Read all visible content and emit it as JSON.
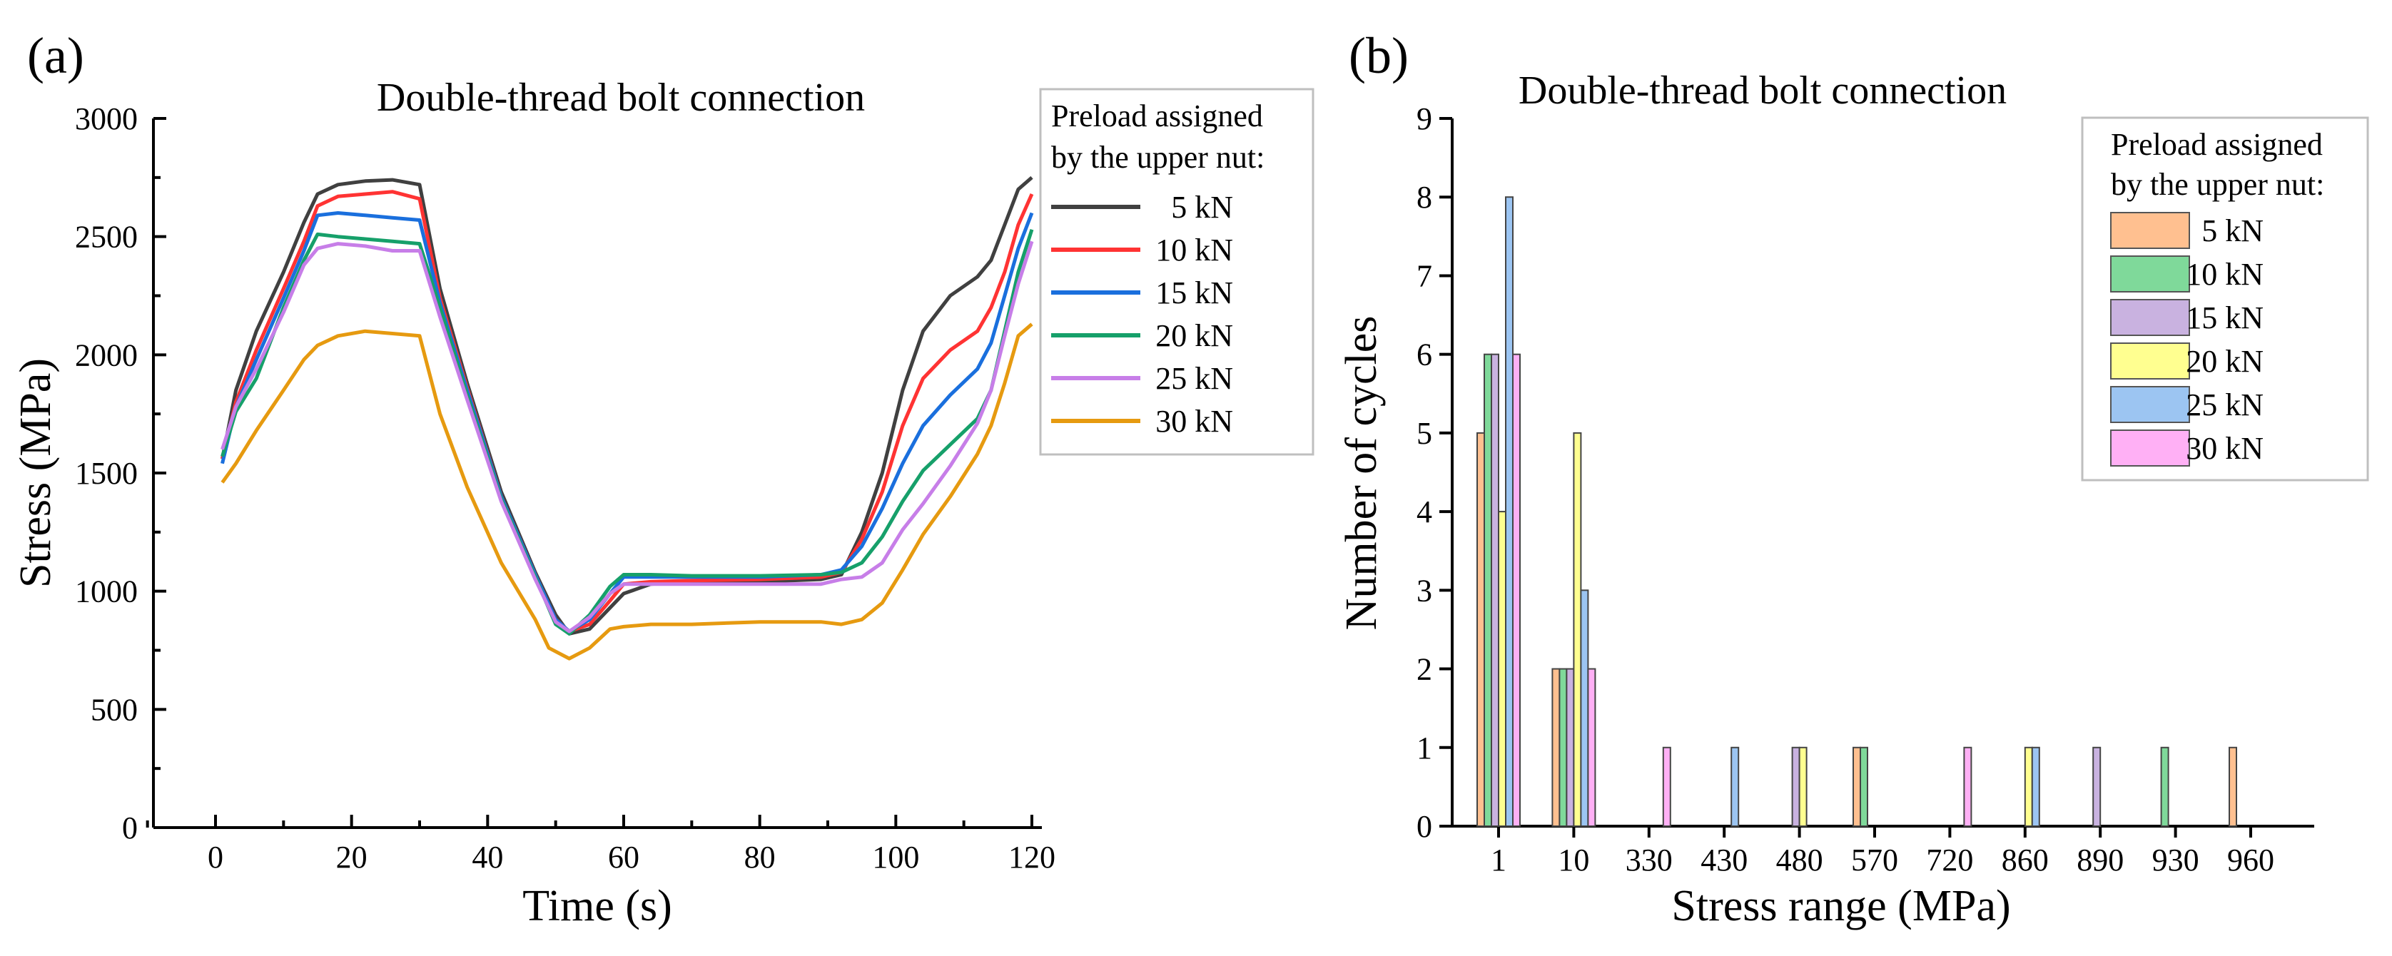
{
  "chart_data": [
    {
      "panel_label": "(a)",
      "type": "line",
      "title": "Double-thread bolt connection",
      "xlabel": "Time (s)",
      "ylabel": "Stress (MPa)",
      "xlim": [
        -10,
        121
      ],
      "ylim": [
        0,
        3000
      ],
      "xticks": [
        0,
        20,
        40,
        60,
        80,
        100,
        120
      ],
      "yticks": [
        0,
        500,
        1000,
        1500,
        2000,
        2500,
        3000
      ],
      "legend_title": [
        "Preload assigned",
        "by the upper nut:"
      ],
      "legend_position": "top-right",
      "series": [
        {
          "name": "5 kN",
          "color": "#404040",
          "points": [
            [
              1,
              1560
            ],
            [
              3,
              1850
            ],
            [
              6,
              2100
            ],
            [
              10,
              2350
            ],
            [
              13,
              2560
            ],
            [
              15,
              2680
            ],
            [
              18,
              2720
            ],
            [
              22,
              2735
            ],
            [
              26,
              2740
            ],
            [
              30,
              2720
            ],
            [
              33,
              2280
            ],
            [
              37,
              1880
            ],
            [
              42,
              1420
            ],
            [
              47,
              1080
            ],
            [
              50,
              900
            ],
            [
              52,
              820
            ],
            [
              55,
              840
            ],
            [
              58,
              930
            ],
            [
              60,
              990
            ],
            [
              64,
              1030
            ],
            [
              70,
              1040
            ],
            [
              80,
              1040
            ],
            [
              89,
              1050
            ],
            [
              92,
              1070
            ],
            [
              95,
              1250
            ],
            [
              98,
              1500
            ],
            [
              101,
              1850
            ],
            [
              104,
              2100
            ],
            [
              108,
              2250
            ],
            [
              112,
              2330
            ],
            [
              114,
              2400
            ],
            [
              116,
              2550
            ],
            [
              118,
              2700
            ],
            [
              120,
              2750
            ]
          ]
        },
        {
          "name": "10 kN",
          "color": "#ff3333",
          "points": [
            [
              1,
              1560
            ],
            [
              3,
              1800
            ],
            [
              6,
              2020
            ],
            [
              10,
              2280
            ],
            [
              13,
              2480
            ],
            [
              15,
              2630
            ],
            [
              18,
              2670
            ],
            [
              22,
              2680
            ],
            [
              26,
              2690
            ],
            [
              30,
              2660
            ],
            [
              33,
              2240
            ],
            [
              37,
              1860
            ],
            [
              42,
              1400
            ],
            [
              47,
              1070
            ],
            [
              50,
              880
            ],
            [
              52,
              830
            ],
            [
              55,
              860
            ],
            [
              58,
              960
            ],
            [
              60,
              1030
            ],
            [
              64,
              1040
            ],
            [
              70,
              1045
            ],
            [
              80,
              1050
            ],
            [
              89,
              1060
            ],
            [
              92,
              1080
            ],
            [
              95,
              1220
            ],
            [
              98,
              1420
            ],
            [
              101,
              1700
            ],
            [
              104,
              1900
            ],
            [
              108,
              2020
            ],
            [
              112,
              2100
            ],
            [
              114,
              2200
            ],
            [
              116,
              2350
            ],
            [
              118,
              2550
            ],
            [
              120,
              2680
            ]
          ]
        },
        {
          "name": "15 kN",
          "color": "#1a6fdd",
          "points": [
            [
              1,
              1540
            ],
            [
              3,
              1780
            ],
            [
              6,
              1980
            ],
            [
              10,
              2240
            ],
            [
              13,
              2440
            ],
            [
              15,
              2590
            ],
            [
              18,
              2600
            ],
            [
              22,
              2590
            ],
            [
              26,
              2580
            ],
            [
              30,
              2570
            ],
            [
              33,
              2220
            ],
            [
              37,
              1850
            ],
            [
              42,
              1400
            ],
            [
              47,
              1070
            ],
            [
              50,
              880
            ],
            [
              52,
              830
            ],
            [
              55,
              880
            ],
            [
              58,
              990
            ],
            [
              60,
              1060
            ],
            [
              64,
              1060
            ],
            [
              70,
              1060
            ],
            [
              80,
              1060
            ],
            [
              89,
              1070
            ],
            [
              92,
              1090
            ],
            [
              95,
              1190
            ],
            [
              98,
              1350
            ],
            [
              101,
              1540
            ],
            [
              104,
              1700
            ],
            [
              108,
              1830
            ],
            [
              112,
              1940
            ],
            [
              114,
              2050
            ],
            [
              116,
              2250
            ],
            [
              118,
              2450
            ],
            [
              120,
              2600
            ]
          ]
        },
        {
          "name": "20 kN",
          "color": "#16a06a",
          "points": [
            [
              1,
              1570
            ],
            [
              3,
              1760
            ],
            [
              6,
              1900
            ],
            [
              10,
              2200
            ],
            [
              13,
              2400
            ],
            [
              15,
              2510
            ],
            [
              18,
              2500
            ],
            [
              22,
              2490
            ],
            [
              26,
              2480
            ],
            [
              30,
              2470
            ],
            [
              33,
              2200
            ],
            [
              37,
              1830
            ],
            [
              42,
              1390
            ],
            [
              47,
              1060
            ],
            [
              50,
              860
            ],
            [
              52,
              820
            ],
            [
              55,
              900
            ],
            [
              58,
              1020
            ],
            [
              60,
              1070
            ],
            [
              64,
              1070
            ],
            [
              70,
              1065
            ],
            [
              80,
              1065
            ],
            [
              89,
              1070
            ],
            [
              92,
              1080
            ],
            [
              95,
              1120
            ],
            [
              98,
              1230
            ],
            [
              101,
              1380
            ],
            [
              104,
              1510
            ],
            [
              108,
              1620
            ],
            [
              112,
              1730
            ],
            [
              114,
              1850
            ],
            [
              116,
              2100
            ],
            [
              118,
              2350
            ],
            [
              120,
              2530
            ]
          ]
        },
        {
          "name": "25 kN",
          "color": "#c77ee8",
          "points": [
            [
              1,
              1600
            ],
            [
              3,
              1780
            ],
            [
              6,
              1940
            ],
            [
              10,
              2180
            ],
            [
              13,
              2380
            ],
            [
              15,
              2450
            ],
            [
              18,
              2470
            ],
            [
              22,
              2460
            ],
            [
              26,
              2440
            ],
            [
              30,
              2440
            ],
            [
              33,
              2160
            ],
            [
              37,
              1810
            ],
            [
              42,
              1380
            ],
            [
              47,
              1050
            ],
            [
              50,
              870
            ],
            [
              52,
              830
            ],
            [
              55,
              890
            ],
            [
              58,
              990
            ],
            [
              60,
              1030
            ],
            [
              64,
              1030
            ],
            [
              70,
              1030
            ],
            [
              80,
              1030
            ],
            [
              89,
              1030
            ],
            [
              92,
              1050
            ],
            [
              95,
              1060
            ],
            [
              98,
              1120
            ],
            [
              101,
              1260
            ],
            [
              104,
              1370
            ],
            [
              108,
              1530
            ],
            [
              112,
              1710
            ],
            [
              114,
              1850
            ],
            [
              116,
              2080
            ],
            [
              118,
              2300
            ],
            [
              120,
              2480
            ]
          ]
        },
        {
          "name": "30 kN",
          "color": "#e69a10",
          "points": [
            [
              1,
              1460
            ],
            [
              3,
              1540
            ],
            [
              6,
              1680
            ],
            [
              10,
              1850
            ],
            [
              13,
              1980
            ],
            [
              15,
              2040
            ],
            [
              18,
              2080
            ],
            [
              22,
              2100
            ],
            [
              26,
              2090
            ],
            [
              30,
              2080
            ],
            [
              33,
              1750
            ],
            [
              37,
              1440
            ],
            [
              42,
              1120
            ],
            [
              47,
              880
            ],
            [
              49,
              760
            ],
            [
              52,
              715
            ],
            [
              55,
              760
            ],
            [
              58,
              840
            ],
            [
              60,
              850
            ],
            [
              64,
              860
            ],
            [
              70,
              860
            ],
            [
              80,
              870
            ],
            [
              89,
              870
            ],
            [
              92,
              860
            ],
            [
              95,
              880
            ],
            [
              98,
              950
            ],
            [
              101,
              1090
            ],
            [
              104,
              1240
            ],
            [
              108,
              1400
            ],
            [
              112,
              1580
            ],
            [
              114,
              1700
            ],
            [
              116,
              1880
            ],
            [
              118,
              2080
            ],
            [
              120,
              2130
            ]
          ]
        }
      ]
    },
    {
      "panel_label": "(b)",
      "type": "bar",
      "title": "Double-thread bolt connection",
      "xlabel": "Stress range (MPa)",
      "ylabel": "Number of cycles",
      "ylim": [
        0,
        9
      ],
      "yticks": [
        0,
        1,
        2,
        3,
        4,
        5,
        6,
        7,
        8,
        9
      ],
      "categories": [
        "1",
        "10",
        "330",
        "430",
        "480",
        "570",
        "720",
        "860",
        "890",
        "930",
        "960"
      ],
      "legend_title": [
        "Preload assigned",
        "by the upper nut:"
      ],
      "legend_position": "top-right",
      "series": [
        {
          "name": "5 kN",
          "color": "#ffc090",
          "values": [
            5,
            2,
            0,
            0,
            0,
            1,
            0,
            0,
            0,
            0,
            1
          ]
        },
        {
          "name": "10 kN",
          "color": "#7fd99a",
          "values": [
            6,
            2,
            0,
            0,
            0,
            1,
            0,
            0,
            0,
            1,
            0
          ]
        },
        {
          "name": "15 kN",
          "color": "#c9b2e0",
          "values": [
            6,
            2,
            0,
            0,
            1,
            0,
            0,
            0,
            1,
            0,
            0
          ]
        },
        {
          "name": "20 kN",
          "color": "#ffff90",
          "values": [
            4,
            5,
            0,
            0,
            1,
            0,
            0,
            1,
            0,
            0,
            0
          ]
        },
        {
          "name": "25 kN",
          "color": "#9cc5f2",
          "values": [
            8,
            3,
            0,
            1,
            0,
            0,
            0,
            1,
            0,
            0,
            0
          ]
        },
        {
          "name": "30 kN",
          "color": "#ffb0f5",
          "values": [
            6,
            2,
            1,
            0,
            0,
            0,
            1,
            0,
            0,
            0,
            0
          ]
        }
      ]
    }
  ]
}
